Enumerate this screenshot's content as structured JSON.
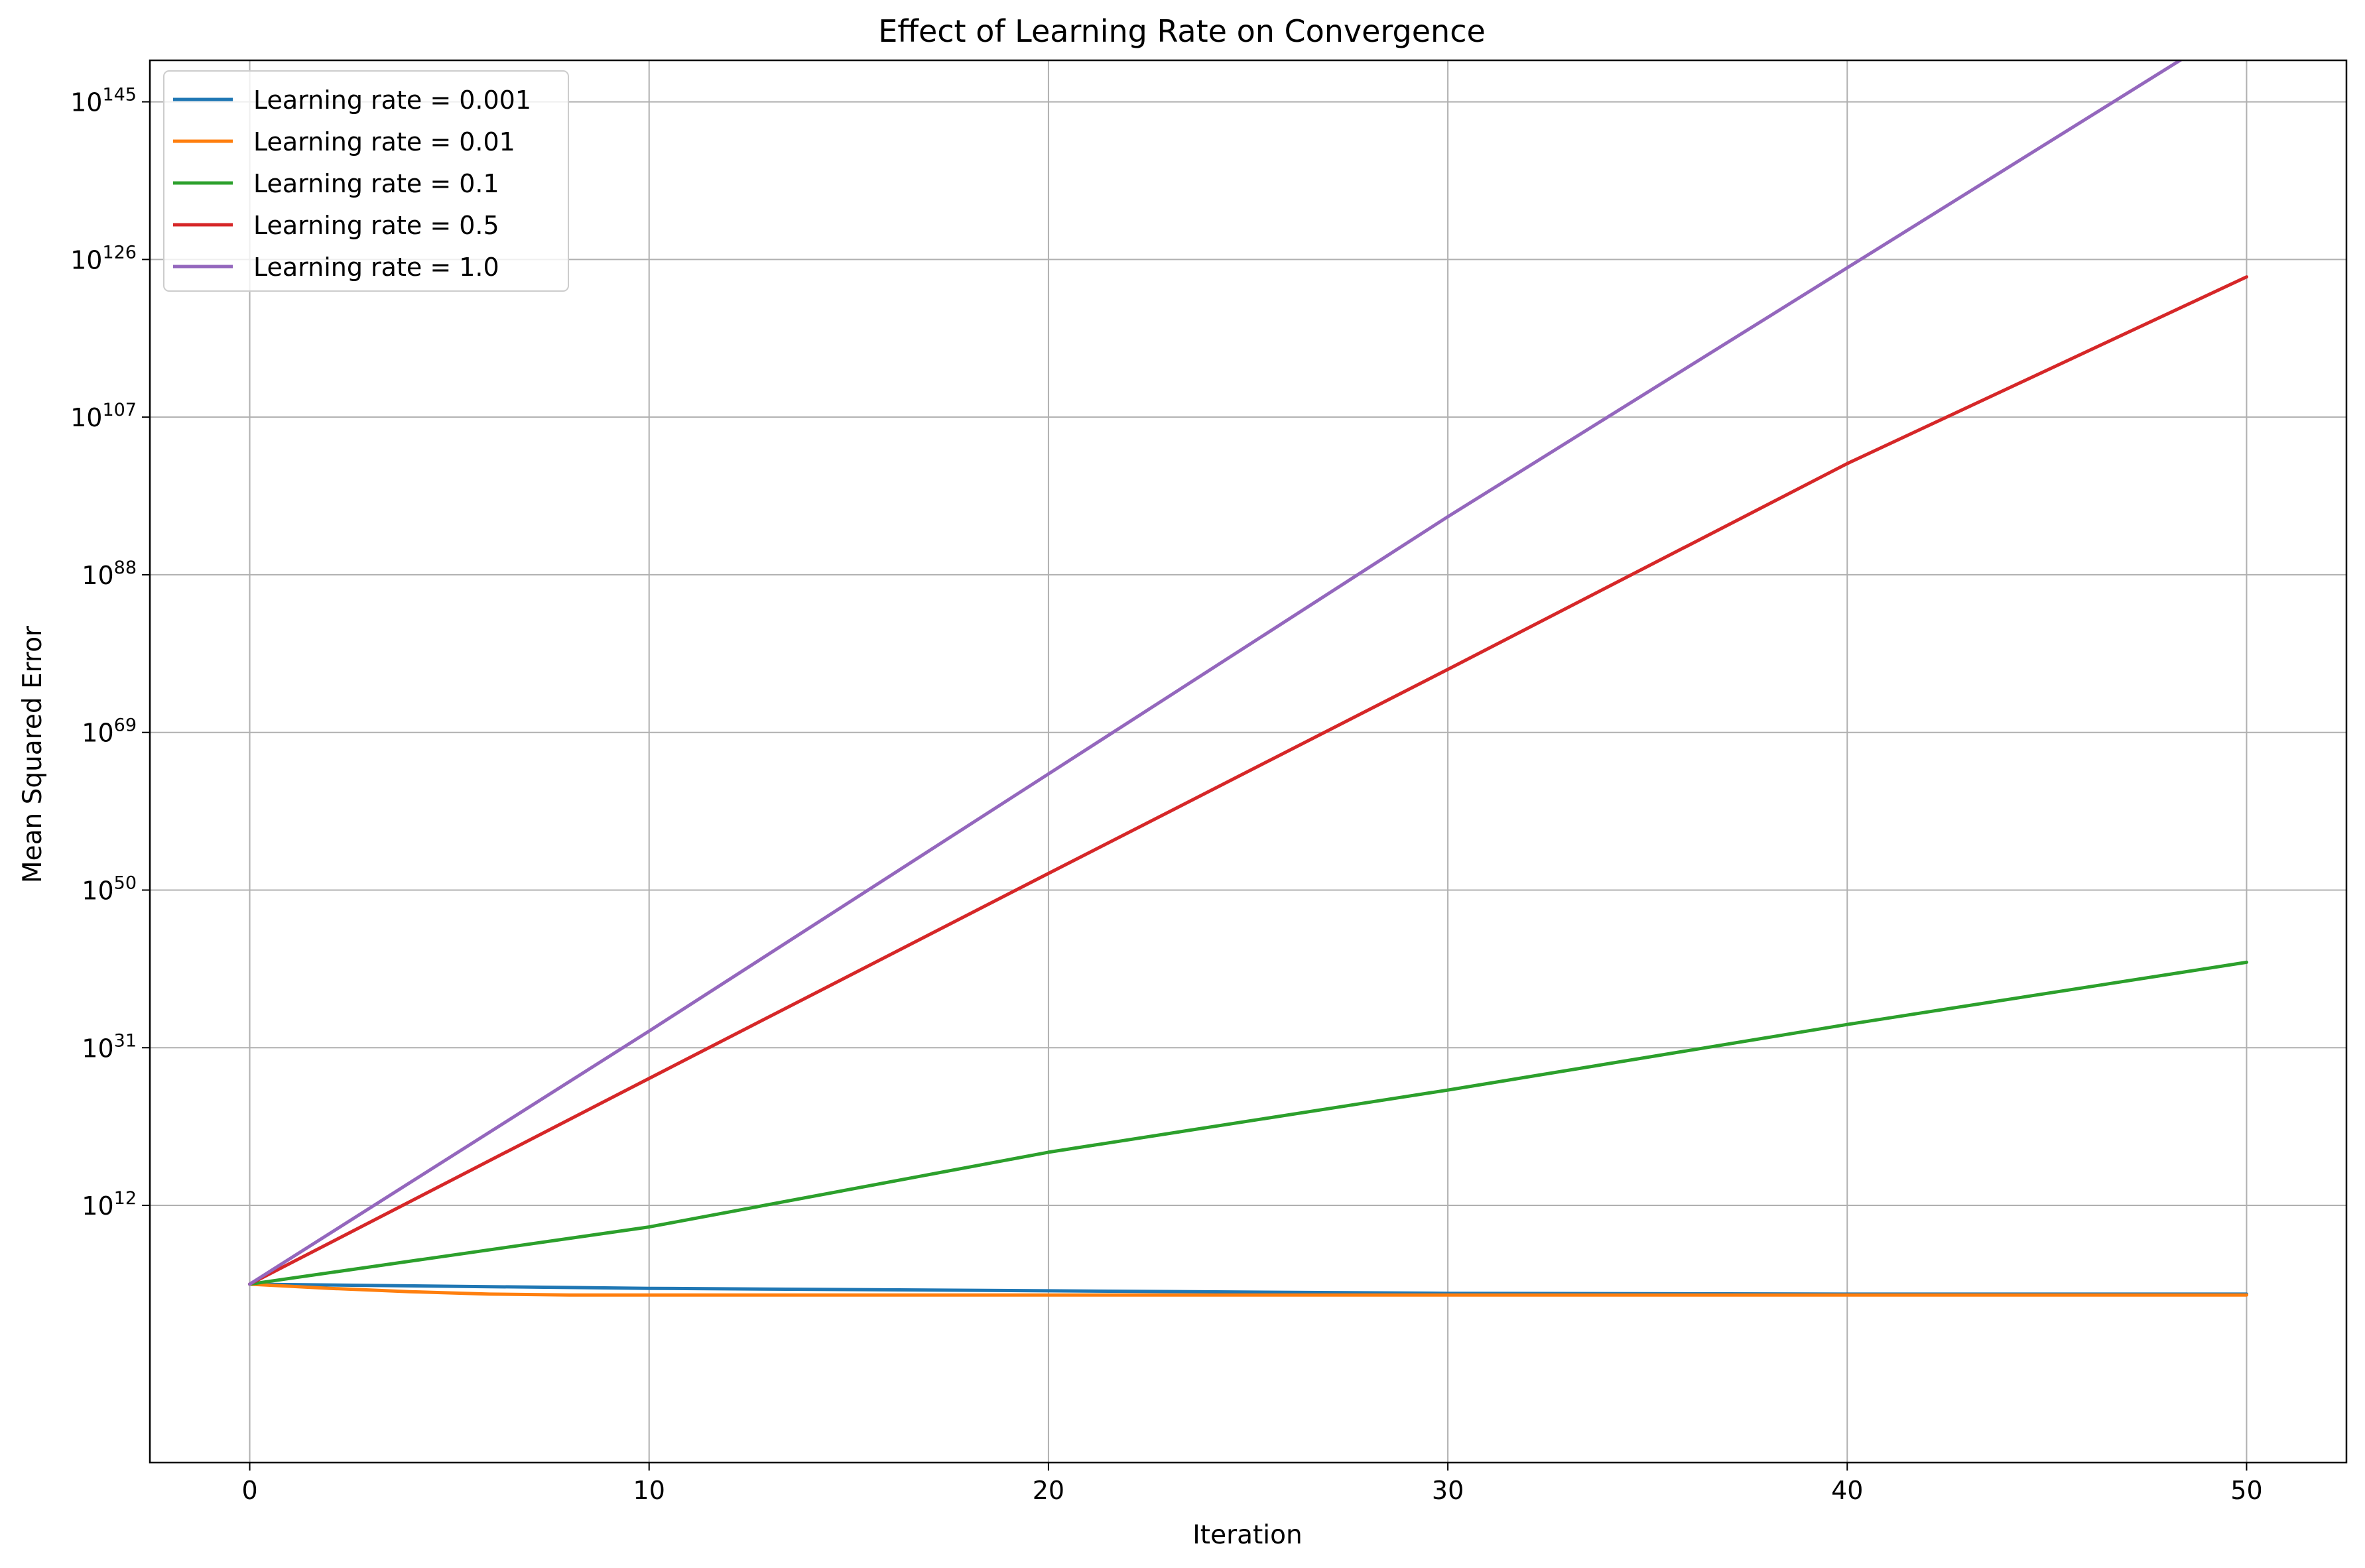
{
  "chart_data": {
    "type": "line",
    "title": "Effect of Learning Rate on Convergence",
    "xlabel": "Iteration",
    "ylabel": "Mean Squared Error",
    "yscale": "log",
    "grid": true,
    "legend_position": "top-left",
    "xlim": [
      -2.5,
      52.5
    ],
    "ylim_exponent": [
      -19,
      150
    ],
    "x_ticks": [
      {
        "value": 0,
        "label": "0"
      },
      {
        "value": 10,
        "label": "10"
      },
      {
        "value": 20,
        "label": "20"
      },
      {
        "value": 30,
        "label": "30"
      },
      {
        "value": 40,
        "label": "40"
      },
      {
        "value": 50,
        "label": "50"
      }
    ],
    "y_ticks": [
      {
        "exponent": 12,
        "base": "10",
        "sup": "12"
      },
      {
        "exponent": 31,
        "base": "10",
        "sup": "31"
      },
      {
        "exponent": 50,
        "base": "10",
        "sup": "50"
      },
      {
        "exponent": 69,
        "base": "10",
        "sup": "69"
      },
      {
        "exponent": 88,
        "base": "10",
        "sup": "88"
      },
      {
        "exponent": 107,
        "base": "10",
        "sup": "107"
      },
      {
        "exponent": 126,
        "base": "10",
        "sup": "126"
      },
      {
        "exponent": 145,
        "base": "10",
        "sup": "145"
      }
    ],
    "series": [
      {
        "name": "Learning rate = 0.001",
        "color": "#1f77b4",
        "x": [
          0,
          10,
          20,
          30,
          40,
          50
        ],
        "log10_y": [
          2.5,
          2.0,
          1.7,
          1.4,
          1.3,
          1.3
        ]
      },
      {
        "name": "Learning rate = 0.01",
        "color": "#ff7f0e",
        "x": [
          0,
          2,
          4,
          6,
          8,
          10,
          20,
          30,
          40,
          50
        ],
        "log10_y": [
          2.5,
          2.0,
          1.6,
          1.3,
          1.2,
          1.2,
          1.2,
          1.2,
          1.2,
          1.2
        ]
      },
      {
        "name": "Learning rate = 0.1",
        "color": "#2ca02c",
        "x": [
          0,
          10,
          20,
          30,
          40,
          50
        ],
        "log10_y": [
          2.5,
          9.4,
          18.4,
          25.9,
          33.8,
          41.3
        ]
      },
      {
        "name": "Learning rate = 0.5",
        "color": "#d62728",
        "x": [
          0,
          10,
          20,
          30,
          40,
          50
        ],
        "log10_y": [
          2.5,
          27.3,
          52.0,
          76.6,
          101.4,
          123.9
        ]
      },
      {
        "name": "Learning rate = 1.0",
        "color": "#9467bd",
        "x": [
          0,
          10,
          20,
          30,
          40,
          50
        ],
        "log10_y": [
          2.5,
          33.0,
          64.0,
          95.0,
          125.0,
          155.0
        ]
      }
    ]
  }
}
